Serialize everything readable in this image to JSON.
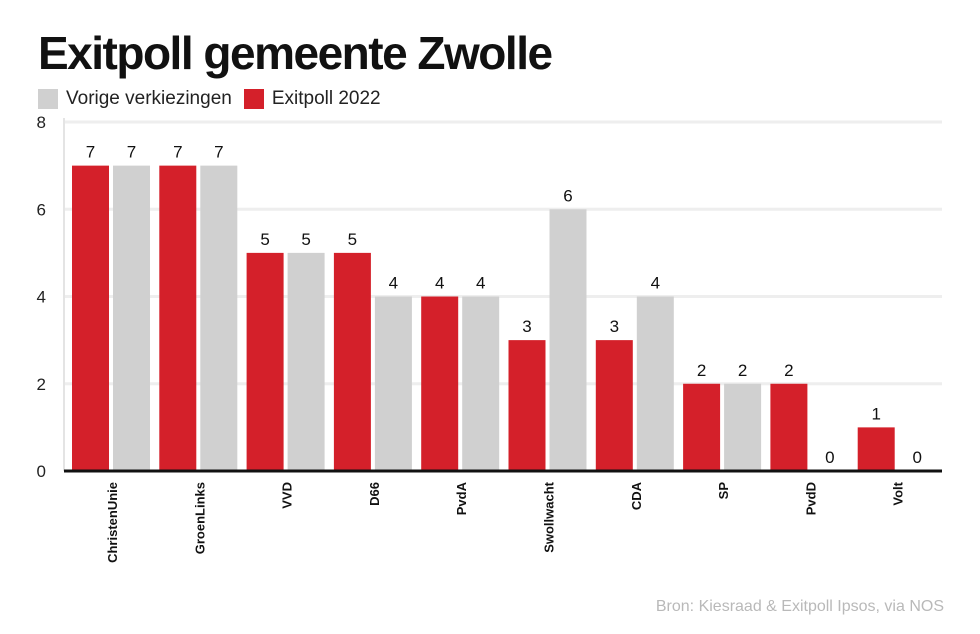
{
  "chart_data": {
    "type": "bar",
    "title": "Exitpoll gemeente Zwolle",
    "categories": [
      "ChristenUnie",
      "GroenLinks",
      "VVD",
      "D66",
      "PvdA",
      "Swollwacht",
      "CDA",
      "SP",
      "PvdD",
      "Volt"
    ],
    "series": [
      {
        "name": "Exitpoll 2022",
        "values": [
          7,
          7,
          5,
          5,
          4,
          3,
          3,
          2,
          2,
          1
        ],
        "color": "#d4202a"
      },
      {
        "name": "Vorige verkiezingen",
        "values": [
          7,
          7,
          5,
          4,
          4,
          6,
          4,
          2,
          0,
          0
        ],
        "color": "#d0d0d0"
      }
    ],
    "legend": [
      {
        "name": "Vorige verkiezingen",
        "color": "#d0d0d0"
      },
      {
        "name": "Exitpoll 2022",
        "color": "#d4202a"
      }
    ],
    "legend_position": "top-left",
    "ylim": [
      0,
      8
    ],
    "yticks": [
      0,
      2,
      4,
      6,
      8
    ],
    "grid": true,
    "xlabel": "",
    "ylabel": "",
    "source": "Bron: Kiesraad & Exitpoll Ipsos, via NOS"
  }
}
